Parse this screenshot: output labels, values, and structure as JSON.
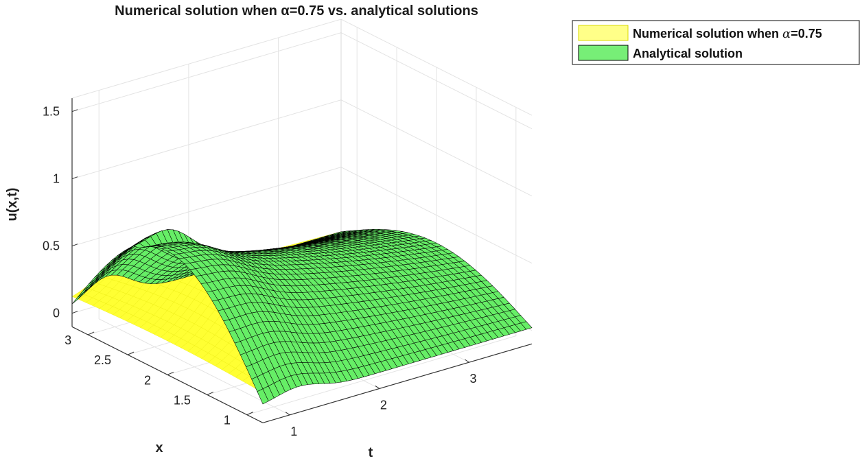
{
  "chart_data": {
    "type": "surface",
    "title": "Numerical solution when α=0.75 vs. analytical solutions",
    "xlabel": "x",
    "ylabel": "t",
    "zlabel": "u(x,t)",
    "x_ticks": [
      "1",
      "1.5",
      "2",
      "2.5",
      "3"
    ],
    "x_tick_values": [
      1,
      1.5,
      2,
      2.5,
      3
    ],
    "t_ticks": [
      "1",
      "2",
      "3"
    ],
    "t_tick_values": [
      1,
      2,
      3
    ],
    "z_ticks": [
      "0",
      "0.5",
      "1",
      "1.5"
    ],
    "z_tick_values": [
      0,
      0.5,
      1,
      1.5
    ],
    "xlim": [
      0.8,
      3.2
    ],
    "tlim": [
      0.7,
      3.7
    ],
    "zlim": [
      -0.1,
      1.6
    ],
    "legend_position": "top-right",
    "series": [
      {
        "name": "Numerical solution when α=0.75",
        "face_color": "#ffff33",
        "edge_color": "#e6e600",
        "description": "smooth surface, bump near t≈1.5 (max ≈0.5), decaying to ≈0 for larger t"
      },
      {
        "name": "Analytical solution",
        "face_color": "#66ee66",
        "edge_color": "#000000",
        "description": "meshed surface, ridge rising toward the middle of x, peak ≈0.75"
      }
    ],
    "legend_labels": {
      "numerical_prefix": "Numerical solution when ",
      "numerical_suffix": "=0.75",
      "alpha_symbol": "α",
      "analytical": "Analytical solution"
    }
  }
}
